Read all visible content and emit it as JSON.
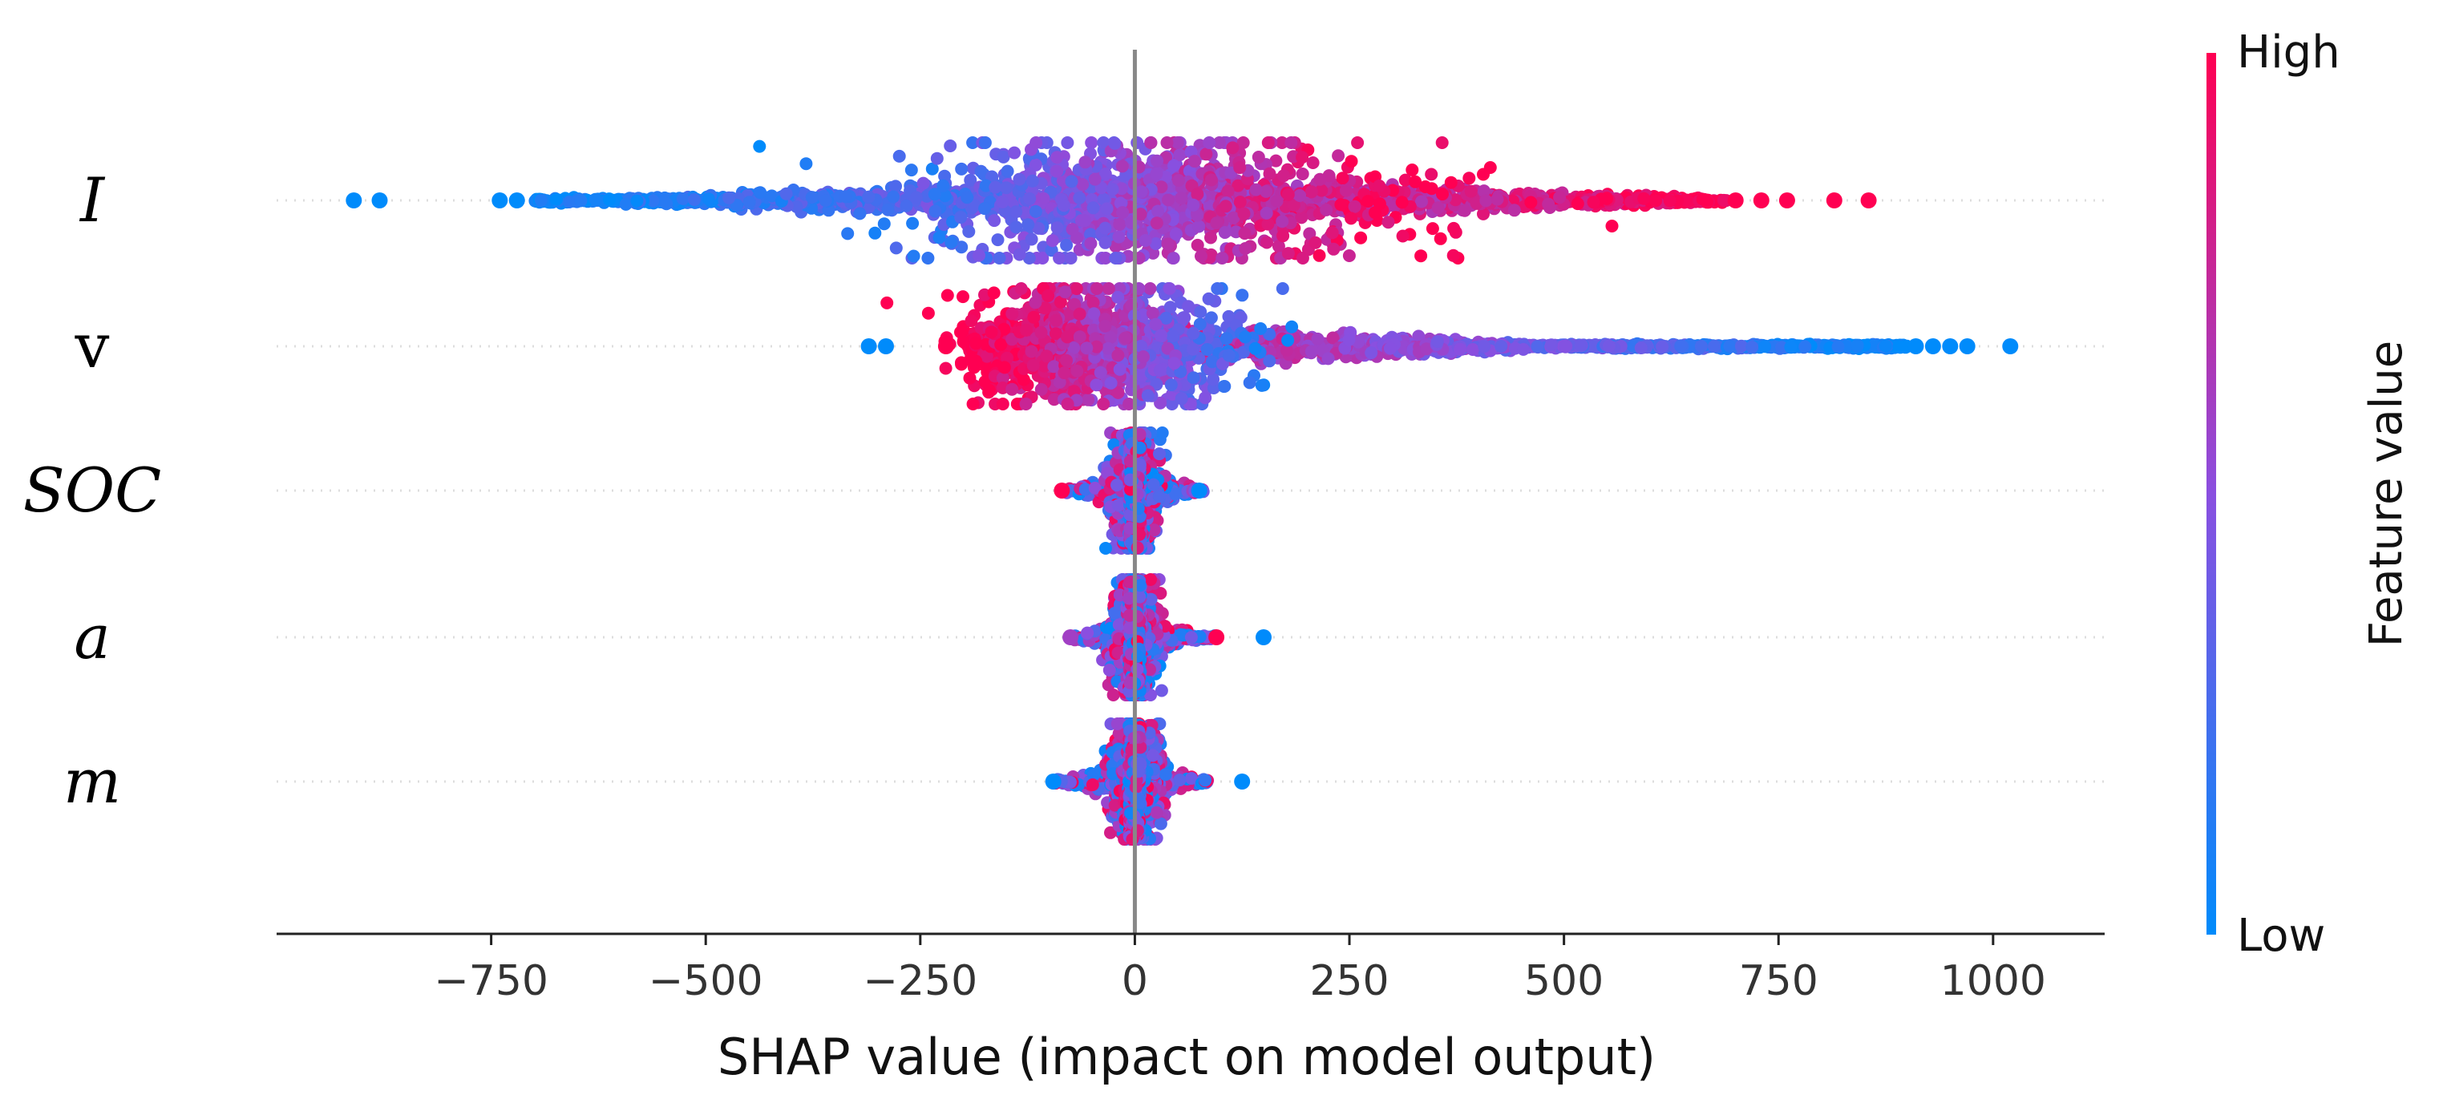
{
  "chart_data": {
    "type": "beeswarm",
    "title": "",
    "xlabel": "SHAP value (impact on model output)",
    "xlim": [
      -1000,
      1130
    ],
    "xticks": [
      -750,
      -500,
      -250,
      0,
      250,
      500,
      750,
      1000
    ],
    "xtick_labels": [
      "−750",
      "−500",
      "−250",
      "0",
      "250",
      "500",
      "750",
      "1000"
    ],
    "colorbar": {
      "label": "Feature value",
      "high_label": "High",
      "low_label": "Low",
      "high_color": "#ff0052",
      "low_color": "#008bfb"
    },
    "features": [
      {
        "name": "I",
        "italic": true,
        "spread": [
          -700,
          690
        ],
        "core": [
          -150,
          180
        ],
        "core_width": 0.55,
        "color_direction": 1,
        "peak_at": 30,
        "outliers": [
          {
            "x": -910,
            "c": 0
          },
          {
            "x": -880,
            "c": 0
          },
          {
            "x": -740,
            "c": 0
          },
          {
            "x": -720,
            "c": 0
          },
          {
            "x": 700,
            "c": 1
          },
          {
            "x": 730,
            "c": 1
          },
          {
            "x": 760,
            "c": 1
          },
          {
            "x": 815,
            "c": 1
          },
          {
            "x": 855,
            "c": 1
          }
        ]
      },
      {
        "name": "v",
        "italic": false,
        "spread": [
          -200,
          900
        ],
        "core": [
          -120,
          60
        ],
        "core_width": 0.5,
        "color_direction": -1,
        "peak_at": -40,
        "outliers": [
          {
            "x": -310,
            "c": 0
          },
          {
            "x": -290,
            "c": 0
          },
          {
            "x": -220,
            "c": 1
          },
          {
            "x": 910,
            "c": 0
          },
          {
            "x": 930,
            "c": 0
          },
          {
            "x": 950,
            "c": 0
          },
          {
            "x": 970,
            "c": 0
          },
          {
            "x": 1020,
            "c": 0
          }
        ]
      },
      {
        "name": "SOC",
        "italic": true,
        "spread": [
          -80,
          80
        ],
        "core": [
          -15,
          15
        ],
        "core_width": 0.45,
        "color_direction": 0,
        "peak_at": 0,
        "outliers": [
          {
            "x": -85,
            "c": 1
          },
          {
            "x": 75,
            "c": 0
          }
        ]
      },
      {
        "name": "a",
        "italic": true,
        "spread": [
          -70,
          95
        ],
        "core": [
          -15,
          15
        ],
        "core_width": 0.45,
        "color_direction": 0,
        "peak_at": 0,
        "outliers": [
          {
            "x": 150,
            "c": 0
          },
          {
            "x": 95,
            "c": 1
          },
          {
            "x": -75,
            "c": 0.6
          }
        ]
      },
      {
        "name": "m",
        "italic": true,
        "spread": [
          -95,
          85
        ],
        "core": [
          -15,
          15
        ],
        "core_width": 0.45,
        "color_direction": 0,
        "peak_at": 0,
        "outliers": [
          {
            "x": 125,
            "c": 0
          },
          {
            "x": -95,
            "c": 0
          }
        ]
      }
    ]
  }
}
